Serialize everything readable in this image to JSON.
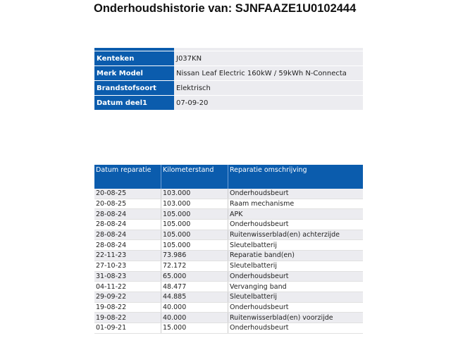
{
  "title": "Onderhoudshistorie van: SJNFAAZE1U0102444",
  "vehicle_info": [
    {
      "label": "Kenteken",
      "value": "J037KN"
    },
    {
      "label": "Merk Model",
      "value": "Nissan Leaf Electric 160kW / 59kWh N-Connecta"
    },
    {
      "label": "Brandstofsoort",
      "value": "Elektrisch"
    },
    {
      "label": "Datum deel1",
      "value": "07-09-20"
    }
  ],
  "history": {
    "columns": [
      "Datum reparatie",
      "Kilometerstand",
      "Reparatie omschrijving"
    ],
    "rows": [
      [
        "20-08-25",
        "103.000",
        "Onderhoudsbeurt"
      ],
      [
        "20-08-25",
        "103.000",
        "Raam mechanisme"
      ],
      [
        "28-08-24",
        "105.000",
        "APK"
      ],
      [
        "28-08-24",
        "105.000",
        "Onderhoudsbeurt"
      ],
      [
        "28-08-24",
        "105.000",
        "Ruitenwisserblad(en) achterzijde"
      ],
      [
        "28-08-24",
        "105.000",
        "Sleutelbatterij"
      ],
      [
        "22-11-23",
        "73.986",
        "Reparatie band(en)"
      ],
      [
        "27-10-23",
        "72.172",
        "Sleutelbatterij"
      ],
      [
        "31-08-23",
        "65.000",
        "Onderhoudsbeurt"
      ],
      [
        "04-11-22",
        "48.477",
        "Vervanging band"
      ],
      [
        "29-09-22",
        "44.885",
        "Sleutelbatterij"
      ],
      [
        "19-08-22",
        "40.000",
        "Onderhoudsbeurt"
      ],
      [
        "19-08-22",
        "40.000",
        "Ruitenwisserblad(en) voorzijde"
      ],
      [
        "01-09-21",
        "15.000",
        "Onderhoudsbeurt"
      ]
    ]
  },
  "colors": {
    "header_blue": "#0b5cad",
    "row_gray": "#ececf0"
  }
}
